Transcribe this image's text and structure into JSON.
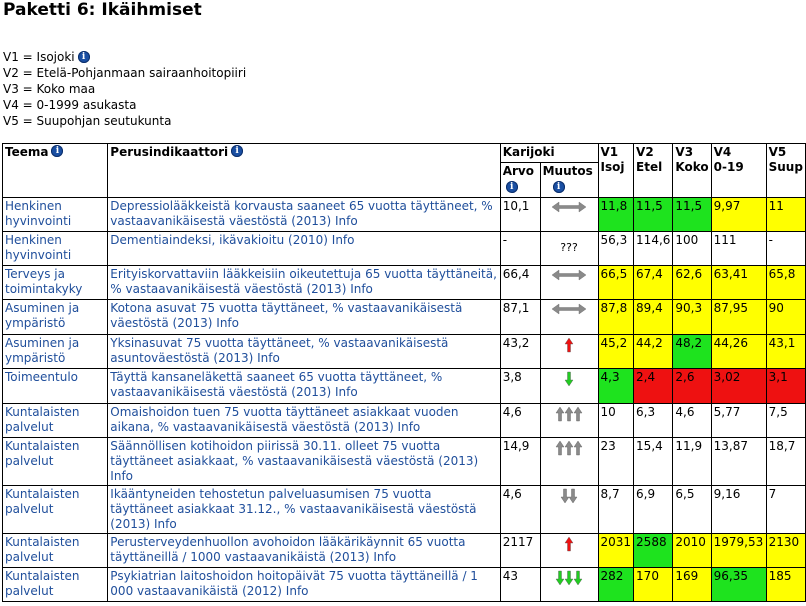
{
  "page_title": "Paketti 6: Ikäihmiset",
  "colors": {
    "green": "#1ee31e",
    "yellow": "#ffff00",
    "red": "#ee1111",
    "link": "#1f4e9b",
    "info_icon": "#1a4fa3"
  },
  "legend": [
    {
      "text": "V1 = Isojoki",
      "info": true
    },
    {
      "text": "V2 = Etelä-Pohjanmaan sairaanhoitopiiri",
      "info": false
    },
    {
      "text": "V3 = Koko maa",
      "info": false
    },
    {
      "text": "V4 = 0-1999 asukasta",
      "info": false
    },
    {
      "text": "V5 = Suupohjan seutukunta",
      "info": false
    }
  ],
  "headers": {
    "teema": "Teema",
    "perusindikaattori": "Perusindikaattori",
    "karijoki": "Karijoki",
    "arvo": "Arvo",
    "muutos": "Muutos",
    "v1": "V1",
    "v1_sub": "Isoj",
    "v2": "V2",
    "v2_sub": "Etel",
    "v3": "V3",
    "v3_sub": "Koko",
    "v4": "V4",
    "v4_sub": "0-19",
    "v5": "V5",
    "v5_sub": "Suup"
  },
  "rows": [
    {
      "teema": "Henkinen hyvinvointi",
      "indicator": "Depressiolääkkeistä korvausta saaneet 65 vuotta täyttäneet, % vastaavanikäisestä väestöstä (2013) Info",
      "arvo": "10,1",
      "muutos": "gray-lr",
      "v": [
        {
          "t": "11,8",
          "c": "green"
        },
        {
          "t": "11,5",
          "c": "green"
        },
        {
          "t": "11,5",
          "c": "green"
        },
        {
          "t": "9,97",
          "c": "yellow"
        },
        {
          "t": "11",
          "c": "yellow"
        }
      ]
    },
    {
      "teema": "Henkinen hyvinvointi",
      "indicator": "Dementiaindeksi, ikävakioitu (2010) Info",
      "arvo": "-",
      "muutos": "unknown",
      "muutos_text": "???",
      "v": [
        {
          "t": "56,3",
          "c": ""
        },
        {
          "t": "114,6",
          "c": ""
        },
        {
          "t": "100",
          "c": ""
        },
        {
          "t": "111",
          "c": ""
        },
        {
          "t": "-",
          "c": ""
        }
      ]
    },
    {
      "teema": "Terveys ja toimintakyky",
      "indicator": "Erityiskorvattaviin lääkkeisiin oikeutettuja 65 vuotta täyttäneitä, % vastaavanikäisestä väestöstä (2013) Info",
      "arvo": "66,4",
      "muutos": "gray-lr",
      "v": [
        {
          "t": "66,5",
          "c": "yellow"
        },
        {
          "t": "67,4",
          "c": "yellow"
        },
        {
          "t": "62,6",
          "c": "yellow"
        },
        {
          "t": "63,41",
          "c": "yellow"
        },
        {
          "t": "65,8",
          "c": "yellow"
        }
      ]
    },
    {
      "teema": "Asuminen ja ympäristö",
      "indicator": "Kotona asuvat 75 vuotta täyttäneet, % vastaavanikäisestä väestöstä (2013) Info",
      "arvo": "87,1",
      "muutos": "gray-lr",
      "v": [
        {
          "t": "87,8",
          "c": "yellow"
        },
        {
          "t": "89,4",
          "c": "yellow"
        },
        {
          "t": "90,3",
          "c": "yellow"
        },
        {
          "t": "87,95",
          "c": "yellow"
        },
        {
          "t": "90",
          "c": "yellow"
        }
      ]
    },
    {
      "teema": "Asuminen ja ympäristö",
      "indicator": "Yksinasuvat 75 vuotta täyttäneet, % vastaavanikäisestä asuntoväestöstä (2013) Info",
      "arvo": "43,2",
      "muutos": "red-up",
      "v": [
        {
          "t": "45,2",
          "c": "yellow"
        },
        {
          "t": "44,2",
          "c": "yellow"
        },
        {
          "t": "48,2",
          "c": "green"
        },
        {
          "t": "44,26",
          "c": "yellow"
        },
        {
          "t": "43,1",
          "c": "yellow"
        }
      ]
    },
    {
      "teema": "Toimeentulo",
      "indicator": "Täyttä kansaneläkettä saaneet 65 vuotta täyttäneet, % vastaavanikäisestä väestöstä (2013) Info",
      "arvo": "3,8",
      "muutos": "green-down",
      "v": [
        {
          "t": "4,3",
          "c": "green"
        },
        {
          "t": "2,4",
          "c": "red"
        },
        {
          "t": "2,6",
          "c": "red"
        },
        {
          "t": "3,02",
          "c": "red"
        },
        {
          "t": "3,1",
          "c": "red"
        }
      ]
    },
    {
      "teema": "Kuntalaisten palvelut",
      "indicator": "Omaishoidon tuen 75 vuotta täyttäneet asiakkaat vuoden aikana, % vastaavanikäisestä väestöstä (2013) Info",
      "arvo": "4,6",
      "muutos": "gray-up3",
      "v": [
        {
          "t": "10",
          "c": ""
        },
        {
          "t": "6,3",
          "c": ""
        },
        {
          "t": "4,6",
          "c": ""
        },
        {
          "t": "5,77",
          "c": ""
        },
        {
          "t": "7,5",
          "c": ""
        }
      ]
    },
    {
      "teema": "Kuntalaisten palvelut",
      "indicator": "Säännöllisen kotihoidon piirissä 30.11. olleet 75 vuotta täyttäneet asiakkaat, % vastaavanikäisestä väestöstä (2013) Info",
      "arvo": "14,9",
      "muutos": "gray-up3",
      "v": [
        {
          "t": "23",
          "c": ""
        },
        {
          "t": "15,4",
          "c": ""
        },
        {
          "t": "11,9",
          "c": ""
        },
        {
          "t": "13,87",
          "c": ""
        },
        {
          "t": "18,7",
          "c": ""
        }
      ]
    },
    {
      "teema": "Kuntalaisten palvelut",
      "indicator": "Ikääntyneiden tehostetun palveluasumisen 75 vuotta täyttäneet asiakkaat 31.12., % vastaavanikäisestä väestöstä (2013) Info",
      "arvo": "4,6",
      "muutos": "gray-down2",
      "v": [
        {
          "t": "8,7",
          "c": ""
        },
        {
          "t": "6,9",
          "c": ""
        },
        {
          "t": "6,5",
          "c": ""
        },
        {
          "t": "9,16",
          "c": ""
        },
        {
          "t": "7",
          "c": ""
        }
      ]
    },
    {
      "teema": "Kuntalaisten palvelut",
      "indicator": "Perusterveydenhuollon avohoidon lääkärikäynnit 65 vuotta täyttäneillä / 1000 vastaavanikäistä (2013) Info",
      "arvo": "2117",
      "muutos": "red-up",
      "v": [
        {
          "t": "2031",
          "c": "yellow"
        },
        {
          "t": "2588",
          "c": "green"
        },
        {
          "t": "2010",
          "c": "yellow"
        },
        {
          "t": "1979,53",
          "c": "yellow"
        },
        {
          "t": "2130",
          "c": "yellow"
        }
      ]
    },
    {
      "teema": "Kuntalaisten palvelut",
      "indicator": "Psykiatrian laitoshoidon hoitopäivät 75 vuotta täyttäneillä / 1 000 vastaavanikäistä (2012) Info",
      "arvo": "43",
      "muutos": "green-down3",
      "v": [
        {
          "t": "282",
          "c": "green"
        },
        {
          "t": "170",
          "c": "yellow"
        },
        {
          "t": "169",
          "c": "yellow"
        },
        {
          "t": "96,35",
          "c": "green"
        },
        {
          "t": "185",
          "c": "yellow"
        }
      ]
    }
  ]
}
